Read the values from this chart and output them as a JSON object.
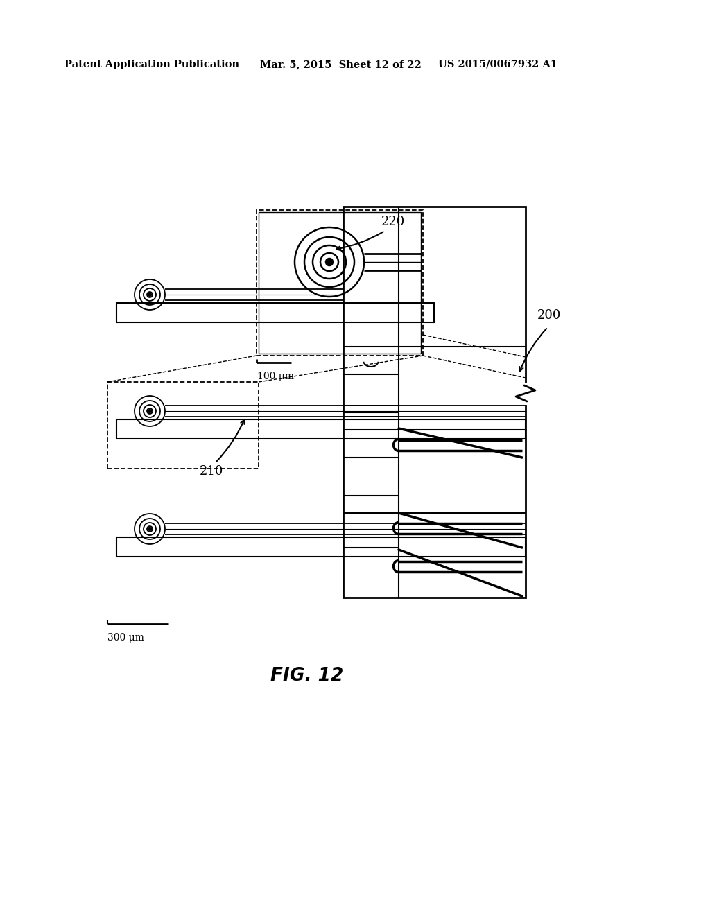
{
  "bg_color": "#ffffff",
  "lc": "#000000",
  "header_left": "Patent Application Publication",
  "header_mid": "Mar. 5, 2015  Sheet 12 of 22",
  "header_right": "US 2015/0067932 A1",
  "fig_label": "FIG. 12",
  "label_200": "200",
  "label_210": "210",
  "label_220": "220",
  "scalebar1_text": "100 μm",
  "scalebar2_text": "300 μm"
}
